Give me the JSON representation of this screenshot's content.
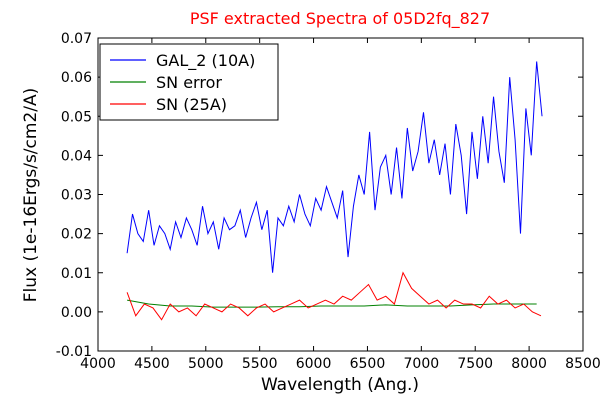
{
  "chart_data": {
    "type": "line",
    "title": "PSF extracted Spectra of 05D2fq_827",
    "xlabel": "Wavelength (Ang.)",
    "ylabel": "Flux (1e-16Ergs/s/cm2/A)",
    "xlim": [
      4000,
      8500
    ],
    "ylim": [
      -0.01,
      0.07
    ],
    "xticks": [
      4000,
      4500,
      5000,
      5500,
      6000,
      6500,
      7000,
      7500,
      8000,
      8500
    ],
    "yticks": [
      {
        "value": -0.01,
        "label": "-0.01"
      },
      {
        "value": 0,
        "label": "0.00"
      },
      0.01,
      0.02,
      0.03,
      0.04,
      0.05,
      0.06,
      0.07
    ],
    "legend": "upper left",
    "series": [
      {
        "name": "GAL_2 (10A)",
        "color": "#0000ff",
        "x": [
          4270,
          4320,
          4370,
          4420,
          4470,
          4520,
          4570,
          4620,
          4670,
          4720,
          4770,
          4820,
          4870,
          4920,
          4970,
          5020,
          5070,
          5120,
          5170,
          5220,
          5270,
          5320,
          5370,
          5420,
          5470,
          5520,
          5570,
          5620,
          5670,
          5720,
          5770,
          5820,
          5870,
          5920,
          5970,
          6020,
          6070,
          6120,
          6170,
          6220,
          6270,
          6320,
          6370,
          6420,
          6470,
          6520,
          6570,
          6620,
          6670,
          6720,
          6770,
          6820,
          6870,
          6920,
          6970,
          7020,
          7070,
          7120,
          7170,
          7220,
          7270,
          7320,
          7370,
          7420,
          7470,
          7520,
          7570,
          7620,
          7670,
          7720,
          7770,
          7820,
          7870,
          7920,
          7970,
          8020,
          8070,
          8120
        ],
        "values": [
          0.015,
          0.025,
          0.02,
          0.018,
          0.026,
          0.017,
          0.022,
          0.02,
          0.016,
          0.023,
          0.019,
          0.024,
          0.021,
          0.017,
          0.027,
          0.02,
          0.023,
          0.016,
          0.024,
          0.021,
          0.022,
          0.026,
          0.019,
          0.024,
          0.028,
          0.021,
          0.026,
          0.01,
          0.024,
          0.022,
          0.027,
          0.023,
          0.03,
          0.025,
          0.022,
          0.029,
          0.026,
          0.032,
          0.028,
          0.024,
          0.031,
          0.014,
          0.027,
          0.035,
          0.03,
          0.046,
          0.026,
          0.037,
          0.04,
          0.03,
          0.042,
          0.029,
          0.047,
          0.036,
          0.041,
          0.051,
          0.038,
          0.044,
          0.035,
          0.043,
          0.03,
          0.048,
          0.04,
          0.025,
          0.046,
          0.034,
          0.05,
          0.038,
          0.055,
          0.041,
          0.033,
          0.06,
          0.044,
          0.02,
          0.052,
          0.04,
          0.064,
          0.05
        ]
      },
      {
        "name": "SN error",
        "color": "#008000",
        "x": [
          4270,
          4470,
          4670,
          4870,
          5070,
          5270,
          5470,
          5670,
          5870,
          6070,
          6270,
          6470,
          6670,
          6870,
          7070,
          7270,
          7470,
          7670,
          7870,
          8070
        ],
        "values": [
          0.003,
          0.002,
          0.0015,
          0.0015,
          0.0012,
          0.0012,
          0.0012,
          0.0013,
          0.0013,
          0.0015,
          0.0015,
          0.0015,
          0.0018,
          0.0015,
          0.0015,
          0.0015,
          0.0018,
          0.002,
          0.002,
          0.002
        ]
      },
      {
        "name": "SN (25A)",
        "color": "#ff0000",
        "x": [
          4270,
          4350,
          4430,
          4510,
          4590,
          4670,
          4750,
          4830,
          4910,
          4990,
          5070,
          5150,
          5230,
          5310,
          5390,
          5470,
          5550,
          5630,
          5710,
          5790,
          5870,
          5950,
          6030,
          6110,
          6190,
          6270,
          6350,
          6430,
          6510,
          6590,
          6670,
          6750,
          6830,
          6910,
          6990,
          7070,
          7150,
          7230,
          7310,
          7390,
          7470,
          7550,
          7630,
          7710,
          7790,
          7870,
          7950,
          8030,
          8110
        ],
        "values": [
          0.005,
          -0.001,
          0.002,
          0.001,
          -0.002,
          0.002,
          0,
          0.001,
          -0.001,
          0.002,
          0.001,
          0,
          0.002,
          0.001,
          -0.001,
          0.001,
          0.002,
          0,
          0.001,
          0.002,
          0.003,
          0.001,
          0.002,
          0.003,
          0.002,
          0.004,
          0.003,
          0.005,
          0.007,
          0.003,
          0.004,
          0.002,
          0.01,
          0.006,
          0.004,
          0.002,
          0.003,
          0.001,
          0.003,
          0.002,
          0.002,
          0.001,
          0.004,
          0.002,
          0.003,
          0.001,
          0.002,
          0,
          -0.001
        ]
      }
    ]
  }
}
